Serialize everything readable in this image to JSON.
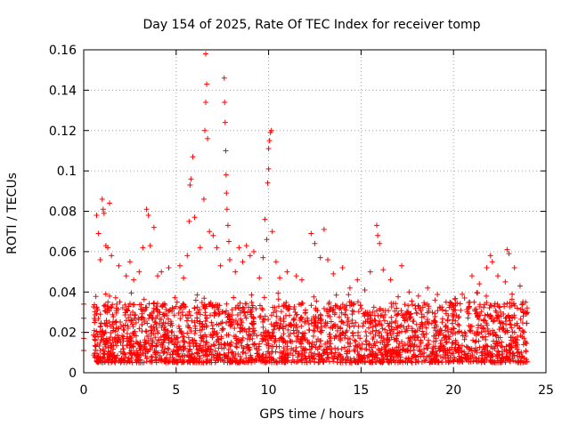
{
  "chart_data": {
    "type": "scatter",
    "title": "Day 154 of 2025, Rate Of TEC Index for receiver tomp",
    "xlabel": "GPS time / hours",
    "ylabel": "ROTI / TECUs",
    "xlim": [
      0,
      25
    ],
    "ylim": [
      0,
      0.16
    ],
    "xticks": [
      0,
      5,
      10,
      15,
      20,
      25
    ],
    "xtick_labels": [
      "0",
      "5",
      "10",
      "15",
      "20",
      "25"
    ],
    "yticks": [
      0,
      0.02,
      0.04,
      0.06,
      0.08,
      0.1,
      0.12,
      0.14,
      0.16
    ],
    "ytick_labels": [
      "0",
      "0.02",
      "0.04",
      "0.06",
      "0.08",
      "0.1",
      "0.12",
      "0.14",
      "0.16"
    ],
    "grid": true,
    "marker": "+",
    "color": "#ff0000",
    "series": [
      {
        "name": "ROTI",
        "note": "dense band of points between ~0.005 and ~0.04 TECU/s across 0-24 h; the sparse outliers above the band are listed here",
        "points": [
          [
            0.0,
            0.034
          ],
          [
            0.0,
            0.027
          ],
          [
            0.0,
            0.02
          ],
          [
            0.0,
            0.017
          ],
          [
            0.0,
            0.011
          ],
          [
            0.7,
            0.078
          ],
          [
            0.8,
            0.069
          ],
          [
            0.9,
            0.056
          ],
          [
            1.0,
            0.086
          ],
          [
            1.05,
            0.081
          ],
          [
            1.1,
            0.079
          ],
          [
            1.2,
            0.063
          ],
          [
            1.3,
            0.062
          ],
          [
            1.4,
            0.084
          ],
          [
            1.5,
            0.058
          ],
          [
            1.9,
            0.053
          ],
          [
            2.3,
            0.048
          ],
          [
            2.5,
            0.055
          ],
          [
            2.7,
            0.046
          ],
          [
            3.0,
            0.05
          ],
          [
            3.2,
            0.062
          ],
          [
            3.4,
            0.081
          ],
          [
            3.5,
            0.078
          ],
          [
            3.6,
            0.063
          ],
          [
            3.8,
            0.072
          ],
          [
            4.0,
            0.048
          ],
          [
            4.2,
            0.05
          ],
          [
            4.6,
            0.052
          ],
          [
            5.2,
            0.053
          ],
          [
            5.4,
            0.047
          ],
          [
            5.6,
            0.058
          ],
          [
            5.7,
            0.075
          ],
          [
            5.75,
            0.093
          ],
          [
            5.8,
            0.096
          ],
          [
            5.9,
            0.107
          ],
          [
            6.0,
            0.077
          ],
          [
            6.3,
            0.062
          ],
          [
            6.5,
            0.086
          ],
          [
            6.55,
            0.12
          ],
          [
            6.6,
            0.134
          ],
          [
            6.6,
            0.158
          ],
          [
            6.65,
            0.143
          ],
          [
            6.7,
            0.116
          ],
          [
            6.8,
            0.07
          ],
          [
            7.0,
            0.068
          ],
          [
            7.2,
            0.062
          ],
          [
            7.4,
            0.053
          ],
          [
            7.6,
            0.146
          ],
          [
            7.62,
            0.134
          ],
          [
            7.65,
            0.124
          ],
          [
            7.68,
            0.11
          ],
          [
            7.7,
            0.098
          ],
          [
            7.72,
            0.089
          ],
          [
            7.75,
            0.081
          ],
          [
            7.8,
            0.073
          ],
          [
            7.85,
            0.065
          ],
          [
            7.9,
            0.056
          ],
          [
            8.2,
            0.05
          ],
          [
            8.4,
            0.062
          ],
          [
            8.6,
            0.055
          ],
          [
            8.8,
            0.063
          ],
          [
            9.0,
            0.058
          ],
          [
            9.2,
            0.06
          ],
          [
            9.5,
            0.047
          ],
          [
            9.7,
            0.057
          ],
          [
            9.8,
            0.076
          ],
          [
            9.9,
            0.066
          ],
          [
            9.95,
            0.094
          ],
          [
            10.0,
            0.101
          ],
          [
            10.0,
            0.111
          ],
          [
            10.05,
            0.115
          ],
          [
            10.1,
            0.119
          ],
          [
            10.15,
            0.12
          ],
          [
            10.2,
            0.07
          ],
          [
            10.4,
            0.055
          ],
          [
            10.6,
            0.047
          ],
          [
            11.0,
            0.05
          ],
          [
            11.5,
            0.048
          ],
          [
            11.8,
            0.046
          ],
          [
            12.3,
            0.069
          ],
          [
            12.5,
            0.064
          ],
          [
            12.8,
            0.057
          ],
          [
            13.0,
            0.071
          ],
          [
            13.2,
            0.056
          ],
          [
            13.5,
            0.049
          ],
          [
            14.0,
            0.052
          ],
          [
            14.4,
            0.042
          ],
          [
            14.8,
            0.046
          ],
          [
            15.2,
            0.041
          ],
          [
            15.5,
            0.05
          ],
          [
            15.85,
            0.073
          ],
          [
            15.9,
            0.068
          ],
          [
            16.0,
            0.064
          ],
          [
            16.2,
            0.051
          ],
          [
            16.6,
            0.046
          ],
          [
            17.2,
            0.053
          ],
          [
            17.6,
            0.04
          ],
          [
            18.1,
            0.038
          ],
          [
            18.6,
            0.042
          ],
          [
            19.0,
            0.036
          ],
          [
            19.6,
            0.035
          ],
          [
            20.1,
            0.031
          ],
          [
            20.6,
            0.037
          ],
          [
            21.0,
            0.048
          ],
          [
            21.4,
            0.044
          ],
          [
            21.8,
            0.052
          ],
          [
            22.0,
            0.058
          ],
          [
            22.1,
            0.055
          ],
          [
            22.4,
            0.048
          ],
          [
            22.8,
            0.045
          ],
          [
            22.9,
            0.061
          ],
          [
            23.0,
            0.059
          ],
          [
            23.3,
            0.052
          ],
          [
            23.6,
            0.043
          ],
          [
            23.9,
            0.035
          ]
        ],
        "band": {
          "x_start": 0.5,
          "x_end": 24.0,
          "y_low": 0.005,
          "y_high": 0.04,
          "y_typical_max": 0.035
        }
      }
    ]
  }
}
